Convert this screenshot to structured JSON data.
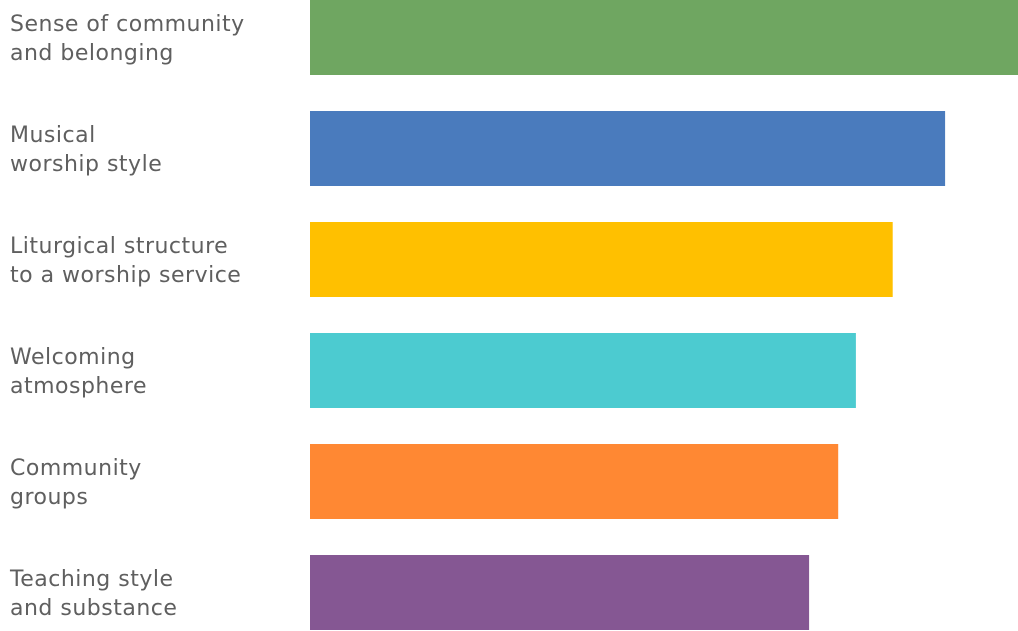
{
  "chart_data": {
    "type": "bar",
    "orientation": "horizontal",
    "title": "",
    "xlabel": "",
    "ylabel": "",
    "grid": false,
    "legend": "none",
    "categories": [
      [
        "Sense of community",
        "and belonging"
      ],
      [
        "Musical",
        "worship style"
      ],
      [
        "Liturgical structure",
        "to a worship service"
      ],
      [
        "Welcoming",
        "atmosphere"
      ],
      [
        "Community",
        "groups"
      ],
      [
        "Teaching style",
        "and substance"
      ]
    ],
    "values": [
      100,
      89.7,
      82.3,
      77.1,
      74.6,
      70.5
    ],
    "colors": [
      "#6fa661",
      "#4a7bbd",
      "#ffc000",
      "#4ccbd0",
      "#ff8833",
      "#855793"
    ],
    "xlim": [
      0,
      100
    ]
  }
}
